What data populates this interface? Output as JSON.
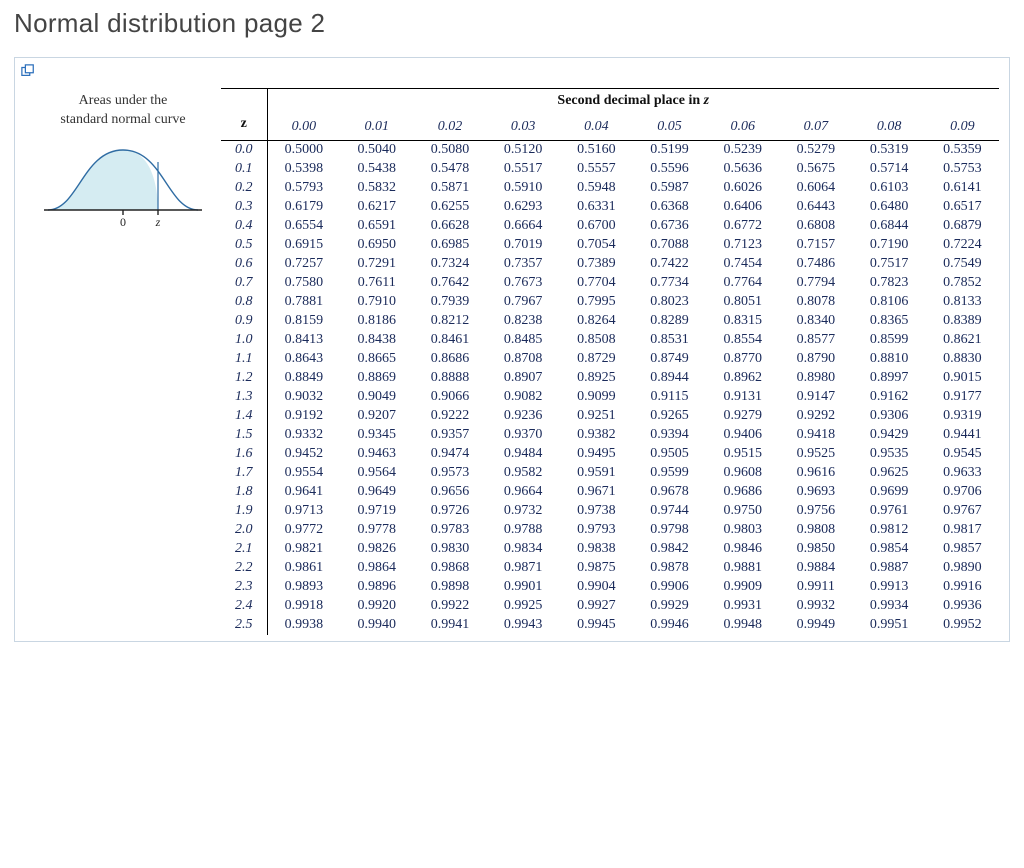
{
  "page": {
    "title": "Normal distribution page 2"
  },
  "left": {
    "caption_line1": "Areas under the",
    "caption_line2": "standard normal curve",
    "axis_zero": "0",
    "axis_z": "z"
  },
  "table": {
    "title_prefix": "Second decimal place in ",
    "title_var": "z",
    "z_header": "z",
    "col_headers": [
      "0.00",
      "0.01",
      "0.02",
      "0.03",
      "0.04",
      "0.05",
      "0.06",
      "0.07",
      "0.08",
      "0.09"
    ],
    "groups": [
      {
        "rows": [
          {
            "z": "0.0",
            "v": [
              "0.5000",
              "0.5040",
              "0.5080",
              "0.5120",
              "0.5160",
              "0.5199",
              "0.5239",
              "0.5279",
              "0.5319",
              "0.5359"
            ]
          },
          {
            "z": "0.1",
            "v": [
              "0.5398",
              "0.5438",
              "0.5478",
              "0.5517",
              "0.5557",
              "0.5596",
              "0.5636",
              "0.5675",
              "0.5714",
              "0.5753"
            ]
          },
          {
            "z": "0.2",
            "v": [
              "0.5793",
              "0.5832",
              "0.5871",
              "0.5910",
              "0.5948",
              "0.5987",
              "0.6026",
              "0.6064",
              "0.6103",
              "0.6141"
            ]
          },
          {
            "z": "0.3",
            "v": [
              "0.6179",
              "0.6217",
              "0.6255",
              "0.6293",
              "0.6331",
              "0.6368",
              "0.6406",
              "0.6443",
              "0.6480",
              "0.6517"
            ]
          },
          {
            "z": "0.4",
            "v": [
              "0.6554",
              "0.6591",
              "0.6628",
              "0.6664",
              "0.6700",
              "0.6736",
              "0.6772",
              "0.6808",
              "0.6844",
              "0.6879"
            ]
          }
        ]
      },
      {
        "rows": [
          {
            "z": "0.5",
            "v": [
              "0.6915",
              "0.6950",
              "0.6985",
              "0.7019",
              "0.7054",
              "0.7088",
              "0.7123",
              "0.7157",
              "0.7190",
              "0.7224"
            ]
          },
          {
            "z": "0.6",
            "v": [
              "0.7257",
              "0.7291",
              "0.7324",
              "0.7357",
              "0.7389",
              "0.7422",
              "0.7454",
              "0.7486",
              "0.7517",
              "0.7549"
            ]
          },
          {
            "z": "0.7",
            "v": [
              "0.7580",
              "0.7611",
              "0.7642",
              "0.7673",
              "0.7704",
              "0.7734",
              "0.7764",
              "0.7794",
              "0.7823",
              "0.7852"
            ]
          },
          {
            "z": "0.8",
            "v": [
              "0.7881",
              "0.7910",
              "0.7939",
              "0.7967",
              "0.7995",
              "0.8023",
              "0.8051",
              "0.8078",
              "0.8106",
              "0.8133"
            ]
          },
          {
            "z": "0.9",
            "v": [
              "0.8159",
              "0.8186",
              "0.8212",
              "0.8238",
              "0.8264",
              "0.8289",
              "0.8315",
              "0.8340",
              "0.8365",
              "0.8389"
            ]
          }
        ]
      },
      {
        "rows": [
          {
            "z": "1.0",
            "v": [
              "0.8413",
              "0.8438",
              "0.8461",
              "0.8485",
              "0.8508",
              "0.8531",
              "0.8554",
              "0.8577",
              "0.8599",
              "0.8621"
            ]
          },
          {
            "z": "1.1",
            "v": [
              "0.8643",
              "0.8665",
              "0.8686",
              "0.8708",
              "0.8729",
              "0.8749",
              "0.8770",
              "0.8790",
              "0.8810",
              "0.8830"
            ]
          },
          {
            "z": "1.2",
            "v": [
              "0.8849",
              "0.8869",
              "0.8888",
              "0.8907",
              "0.8925",
              "0.8944",
              "0.8962",
              "0.8980",
              "0.8997",
              "0.9015"
            ]
          },
          {
            "z": "1.3",
            "v": [
              "0.9032",
              "0.9049",
              "0.9066",
              "0.9082",
              "0.9099",
              "0.9115",
              "0.9131",
              "0.9147",
              "0.9162",
              "0.9177"
            ]
          },
          {
            "z": "1.4",
            "v": [
              "0.9192",
              "0.9207",
              "0.9222",
              "0.9236",
              "0.9251",
              "0.9265",
              "0.9279",
              "0.9292",
              "0.9306",
              "0.9319"
            ]
          }
        ]
      },
      {
        "rows": [
          {
            "z": "1.5",
            "v": [
              "0.9332",
              "0.9345",
              "0.9357",
              "0.9370",
              "0.9382",
              "0.9394",
              "0.9406",
              "0.9418",
              "0.9429",
              "0.9441"
            ]
          },
          {
            "z": "1.6",
            "v": [
              "0.9452",
              "0.9463",
              "0.9474",
              "0.9484",
              "0.9495",
              "0.9505",
              "0.9515",
              "0.9525",
              "0.9535",
              "0.9545"
            ]
          },
          {
            "z": "1.7",
            "v": [
              "0.9554",
              "0.9564",
              "0.9573",
              "0.9582",
              "0.9591",
              "0.9599",
              "0.9608",
              "0.9616",
              "0.9625",
              "0.9633"
            ]
          },
          {
            "z": "1.8",
            "v": [
              "0.9641",
              "0.9649",
              "0.9656",
              "0.9664",
              "0.9671",
              "0.9678",
              "0.9686",
              "0.9693",
              "0.9699",
              "0.9706"
            ]
          },
          {
            "z": "1.9",
            "v": [
              "0.9713",
              "0.9719",
              "0.9726",
              "0.9732",
              "0.9738",
              "0.9744",
              "0.9750",
              "0.9756",
              "0.9761",
              "0.9767"
            ]
          }
        ]
      },
      {
        "rows": [
          {
            "z": "2.0",
            "v": [
              "0.9772",
              "0.9778",
              "0.9783",
              "0.9788",
              "0.9793",
              "0.9798",
              "0.9803",
              "0.9808",
              "0.9812",
              "0.9817"
            ]
          },
          {
            "z": "2.1",
            "v": [
              "0.9821",
              "0.9826",
              "0.9830",
              "0.9834",
              "0.9838",
              "0.9842",
              "0.9846",
              "0.9850",
              "0.9854",
              "0.9857"
            ]
          },
          {
            "z": "2.2",
            "v": [
              "0.9861",
              "0.9864",
              "0.9868",
              "0.9871",
              "0.9875",
              "0.9878",
              "0.9881",
              "0.9884",
              "0.9887",
              "0.9890"
            ]
          },
          {
            "z": "2.3",
            "v": [
              "0.9893",
              "0.9896",
              "0.9898",
              "0.9901",
              "0.9904",
              "0.9906",
              "0.9909",
              "0.9911",
              "0.9913",
              "0.9916"
            ]
          },
          {
            "z": "2.4",
            "v": [
              "0.9918",
              "0.9920",
              "0.9922",
              "0.9925",
              "0.9927",
              "0.9929",
              "0.9931",
              "0.9932",
              "0.9934",
              "0.9936"
            ]
          }
        ]
      },
      {
        "rows": [
          {
            "z": "2.5",
            "v": [
              "0.9938",
              "0.9940",
              "0.9941",
              "0.9943",
              "0.9945",
              "0.9946",
              "0.9948",
              "0.9949",
              "0.9951",
              "0.9952"
            ]
          }
        ]
      }
    ]
  },
  "style": {
    "page_title_color": "#444444",
    "box_border_color": "#c9d6e2",
    "table_text_color": "#1a2a5a",
    "curve_fill": "#d5ecf2",
    "curve_stroke": "#2f6ca3",
    "axis_color": "#222222",
    "font_serif": "Georgia, 'Times New Roman', serif",
    "font_sans": "'Helvetica Neue', Helvetica, Arial, sans-serif"
  }
}
